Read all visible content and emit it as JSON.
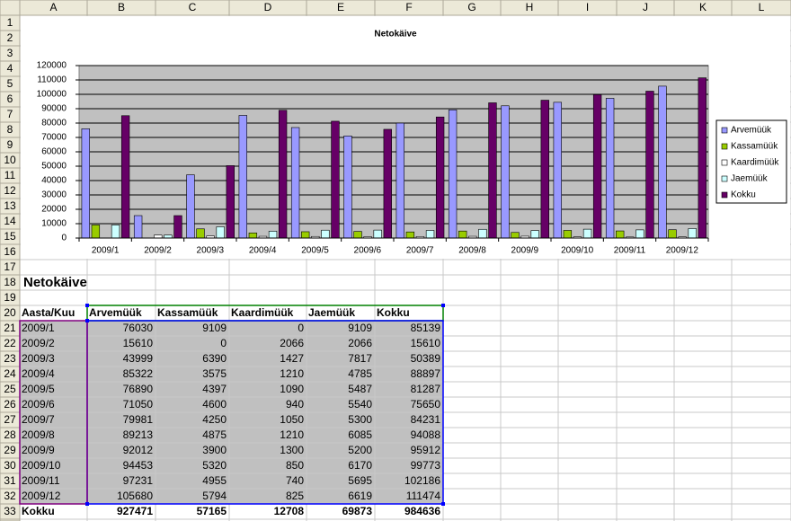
{
  "sheet": {
    "columns": [
      "A",
      "B",
      "C",
      "D",
      "E",
      "F",
      "G",
      "H",
      "I",
      "J",
      "K",
      "L"
    ],
    "rows": [
      1,
      2,
      3,
      4,
      5,
      6,
      7,
      8,
      9,
      10,
      11,
      12,
      13,
      14,
      15,
      16,
      17,
      18,
      19,
      20,
      21,
      22,
      23,
      24,
      25,
      26,
      27,
      28,
      29,
      30,
      31,
      32,
      33
    ]
  },
  "chart_data": {
    "type": "bar",
    "title": "Netokäive",
    "categories": [
      "2009/1",
      "2009/2",
      "2009/3",
      "2009/4",
      "2009/5",
      "2009/6",
      "2009/7",
      "2009/8",
      "2009/9",
      "2009/10",
      "2009/11",
      "2009/12"
    ],
    "series": [
      {
        "name": "Arvemüük",
        "color": "#9999ff",
        "values": [
          76030,
          15610,
          43999,
          85322,
          76890,
          71050,
          79981,
          89213,
          92012,
          94453,
          97231,
          105680
        ]
      },
      {
        "name": "Kassamüük",
        "color": "#99cc00",
        "values": [
          9109,
          0,
          6390,
          3575,
          4397,
          4600,
          4250,
          4875,
          3900,
          5320,
          4955,
          5794
        ]
      },
      {
        "name": "Kaardimüük",
        "color": "#ffffff",
        "values": [
          0,
          2066,
          1427,
          1210,
          1090,
          940,
          1050,
          1210,
          1300,
          850,
          740,
          825
        ]
      },
      {
        "name": "Jaemüük",
        "color": "#ccffff",
        "values": [
          9109,
          2066,
          7817,
          4785,
          5487,
          5540,
          5300,
          6085,
          5200,
          6170,
          5695,
          6619
        ]
      },
      {
        "name": "Kokku",
        "color": "#660066",
        "values": [
          85139,
          15610,
          50389,
          88897,
          81287,
          75650,
          84231,
          94088,
          95912,
          99773,
          102186,
          111474
        ]
      }
    ],
    "ylim": [
      0,
      120000
    ],
    "yticks": [
      0,
      10000,
      20000,
      30000,
      40000,
      50000,
      60000,
      70000,
      80000,
      90000,
      100000,
      110000,
      120000
    ],
    "grid": true,
    "legend": "right"
  },
  "table": {
    "title": "Netokäive",
    "header": [
      "Aasta/Kuu",
      "Arvemüük",
      "Kassamüük",
      "Kaardimüük",
      "Jaemüük",
      "Kokku"
    ],
    "rows": [
      [
        "2009/1",
        76030,
        9109,
        0,
        9109,
        85139
      ],
      [
        "2009/2",
        15610,
        0,
        2066,
        2066,
        15610
      ],
      [
        "2009/3",
        43999,
        6390,
        1427,
        7817,
        50389
      ],
      [
        "2009/4",
        85322,
        3575,
        1210,
        4785,
        88897
      ],
      [
        "2009/5",
        76890,
        4397,
        1090,
        5487,
        81287
      ],
      [
        "2009/6",
        71050,
        4600,
        940,
        5540,
        75650
      ],
      [
        "2009/7",
        79981,
        4250,
        1050,
        5300,
        84231
      ],
      [
        "2009/8",
        89213,
        4875,
        1210,
        6085,
        94088
      ],
      [
        "2009/9",
        92012,
        3900,
        1300,
        5200,
        95912
      ],
      [
        "2009/10",
        94453,
        5320,
        850,
        6170,
        99773
      ],
      [
        "2009/11",
        97231,
        4955,
        740,
        5695,
        102186
      ],
      [
        "2009/12",
        105680,
        5794,
        825,
        6619,
        111474
      ]
    ],
    "total": [
      "Kokku",
      927471,
      57165,
      12708,
      69873,
      984636
    ]
  }
}
